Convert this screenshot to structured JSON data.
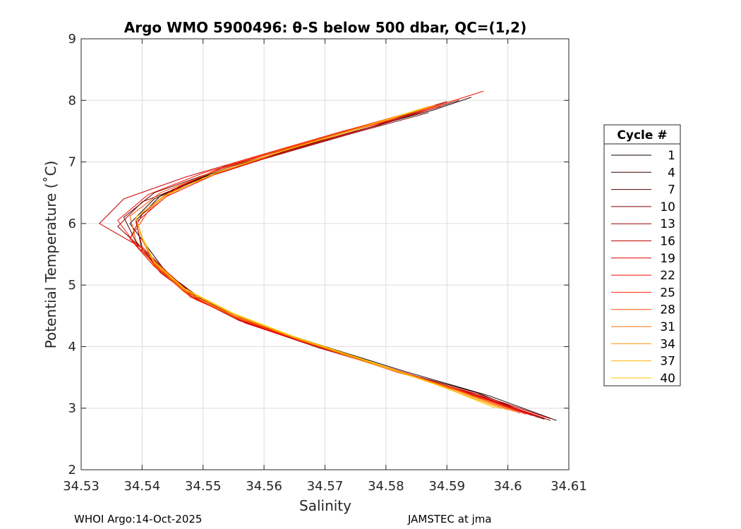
{
  "chart_data": {
    "type": "line",
    "title": "Argo WMO 5900496: θ-S below 500 dbar,  QC=(1,2)",
    "xlabel": "Salinity",
    "ylabel": "Potential Temperature (˚C)",
    "xlim": [
      34.53,
      34.61
    ],
    "ylim": [
      2,
      9
    ],
    "x_ticks": [
      "34.53",
      "34.54",
      "34.55",
      "34.56",
      "34.57",
      "34.58",
      "34.59",
      "34.6",
      "34.61"
    ],
    "y_ticks": [
      "2",
      "3",
      "4",
      "5",
      "6",
      "7",
      "8",
      "9"
    ],
    "grid": true,
    "legend": {
      "title": "Cycle #",
      "placement": "outside-right",
      "entries": [
        {
          "name": "1",
          "color": "#1a0000"
        },
        {
          "name": "4",
          "color": "#3c0000"
        },
        {
          "name": "7",
          "color": "#5e0000"
        },
        {
          "name": "10",
          "color": "#800000"
        },
        {
          "name": "13",
          "color": "#a20000"
        },
        {
          "name": "16",
          "color": "#c40000"
        },
        {
          "name": "19",
          "color": "#e60000"
        },
        {
          "name": "22",
          "color": "#ff0800"
        },
        {
          "name": "25",
          "color": "#ff2a00"
        },
        {
          "name": "28",
          "color": "#ff4c00"
        },
        {
          "name": "31",
          "color": "#ff6e00"
        },
        {
          "name": "34",
          "color": "#ff9000"
        },
        {
          "name": "37",
          "color": "#ffb200"
        },
        {
          "name": "40",
          "color": "#ffc400"
        }
      ]
    },
    "series": [
      {
        "color": "#1a0000",
        "x": [
          34.608,
          34.597,
          34.583,
          34.57,
          34.559,
          34.55,
          34.544,
          34.541,
          34.538,
          34.542,
          34.55,
          34.561,
          34.575,
          34.588,
          34.594
        ],
        "y": [
          2.8,
          3.2,
          3.6,
          4.0,
          4.35,
          4.75,
          5.2,
          5.6,
          6.0,
          6.4,
          6.75,
          7.1,
          7.5,
          7.85,
          8.05
        ]
      },
      {
        "color": "#3c0000",
        "x": [
          34.605,
          34.595,
          34.582,
          34.569,
          34.558,
          34.55,
          34.544,
          34.54,
          34.539,
          34.543,
          34.551,
          34.563,
          34.577,
          34.589
        ],
        "y": [
          2.85,
          3.25,
          3.6,
          3.98,
          4.35,
          4.72,
          5.15,
          5.55,
          6.05,
          6.45,
          6.8,
          7.15,
          7.55,
          7.95
        ]
      },
      {
        "color": "#5e0000",
        "x": [
          34.606,
          34.594,
          34.581,
          34.568,
          34.557,
          34.549,
          34.543,
          34.539,
          34.537,
          34.542,
          34.552,
          34.564,
          34.579,
          34.592
        ],
        "y": [
          2.82,
          3.22,
          3.62,
          4.02,
          4.4,
          4.8,
          5.25,
          5.7,
          6.1,
          6.5,
          6.85,
          7.2,
          7.6,
          8.0
        ]
      },
      {
        "color": "#800000",
        "x": [
          34.607,
          34.596,
          34.584,
          34.571,
          34.56,
          34.551,
          34.545,
          34.541,
          34.536,
          34.54,
          34.549,
          34.56,
          34.574,
          34.587
        ],
        "y": [
          2.8,
          3.18,
          3.55,
          3.95,
          4.3,
          4.7,
          5.1,
          5.5,
          5.95,
          6.35,
          6.7,
          7.05,
          7.45,
          7.8
        ]
      },
      {
        "color": "#a20000",
        "x": [
          34.604,
          34.593,
          34.58,
          34.567,
          34.556,
          34.548,
          34.542,
          34.538,
          34.54,
          34.545,
          34.553,
          34.565,
          34.578,
          34.59
        ],
        "y": [
          2.88,
          3.28,
          3.65,
          4.05,
          4.42,
          4.82,
          5.3,
          5.75,
          6.15,
          6.55,
          6.9,
          7.25,
          7.62,
          7.98
        ]
      },
      {
        "color": "#c40000",
        "x": [
          34.607,
          34.595,
          34.582,
          34.57,
          34.558,
          34.549,
          34.543,
          34.54,
          34.533,
          34.537,
          34.547,
          34.559,
          34.573,
          34.586
        ],
        "y": [
          2.83,
          3.23,
          3.58,
          3.97,
          4.36,
          4.76,
          5.2,
          5.6,
          6.0,
          6.4,
          6.75,
          7.1,
          7.5,
          7.85
        ]
      },
      {
        "color": "#e60000",
        "x": [
          34.606,
          34.594,
          34.583,
          34.569,
          34.557,
          34.549,
          34.544,
          34.54,
          34.539,
          34.544,
          34.552,
          34.564,
          34.577,
          34.596
        ],
        "y": [
          2.84,
          3.24,
          3.58,
          3.99,
          4.38,
          4.78,
          5.22,
          5.62,
          6.02,
          6.44,
          6.8,
          7.18,
          7.55,
          8.15
        ]
      },
      {
        "color": "#ff0800",
        "x": [
          34.605,
          34.593,
          34.581,
          34.568,
          34.557,
          34.548,
          34.543,
          34.539,
          34.536,
          34.541,
          34.55,
          34.562,
          34.576,
          34.589
        ],
        "y": [
          2.86,
          3.26,
          3.62,
          4.02,
          4.4,
          4.8,
          5.24,
          5.65,
          6.05,
          6.47,
          6.82,
          7.17,
          7.55,
          7.9
        ]
      },
      {
        "color": "#ff2a00",
        "x": [
          34.603,
          34.592,
          34.58,
          34.567,
          34.556,
          34.548,
          34.542,
          34.538,
          34.541,
          34.546,
          34.554,
          34.566,
          34.58,
          34.592
        ],
        "y": [
          2.9,
          3.3,
          3.67,
          4.07,
          4.45,
          4.85,
          5.3,
          5.75,
          6.2,
          6.6,
          6.95,
          7.3,
          7.68,
          8.02
        ]
      },
      {
        "color": "#ff4c00",
        "x": [
          34.602,
          34.591,
          34.579,
          34.566,
          34.555,
          34.547,
          34.542,
          34.539,
          34.538,
          34.543,
          34.552,
          34.563,
          34.576,
          34.588
        ],
        "y": [
          2.92,
          3.32,
          3.7,
          4.1,
          4.48,
          4.88,
          5.32,
          5.72,
          6.12,
          6.5,
          6.85,
          7.2,
          7.58,
          7.92
        ]
      },
      {
        "color": "#ff6e00",
        "x": [
          34.601,
          34.59,
          34.578,
          34.566,
          34.555,
          34.547,
          34.542,
          34.54,
          34.539,
          34.544,
          34.553,
          34.564,
          34.577,
          34.589
        ],
        "y": [
          2.95,
          3.35,
          3.72,
          4.12,
          4.5,
          4.9,
          5.34,
          5.74,
          6.1,
          6.48,
          6.84,
          7.2,
          7.58,
          7.94
        ]
      },
      {
        "color": "#ff9000",
        "x": [
          34.6,
          34.589,
          34.577,
          34.565,
          34.555,
          34.547,
          34.542,
          34.54,
          34.539,
          34.544,
          34.552,
          34.563,
          34.576,
          34.588
        ],
        "y": [
          2.97,
          3.37,
          3.74,
          4.14,
          4.52,
          4.92,
          5.36,
          5.76,
          6.1,
          6.46,
          6.82,
          7.18,
          7.56,
          7.92
        ]
      },
      {
        "color": "#ffb200",
        "x": [
          34.599,
          34.588,
          34.577,
          34.565,
          34.555,
          34.547,
          34.542,
          34.54,
          34.539,
          34.544,
          34.552,
          34.563,
          34.576,
          34.587
        ],
        "y": [
          2.99,
          3.39,
          3.76,
          4.15,
          4.53,
          4.93,
          5.37,
          5.77,
          6.1,
          6.46,
          6.82,
          7.18,
          7.56,
          7.9
        ]
      },
      {
        "color": "#ffc400",
        "x": [
          34.598,
          34.588,
          34.577,
          34.565,
          34.555,
          34.547,
          34.542,
          34.54,
          34.539,
          34.544,
          34.552,
          34.563,
          34.576,
          34.587
        ],
        "y": [
          3.0,
          3.4,
          3.77,
          4.16,
          4.54,
          4.94,
          5.38,
          5.78,
          6.1,
          6.46,
          6.82,
          7.18,
          7.56,
          7.9
        ]
      }
    ]
  },
  "footer": {
    "left": "WHOI Argo:14-Oct-2025",
    "right": "JAMSTEC at jma"
  }
}
